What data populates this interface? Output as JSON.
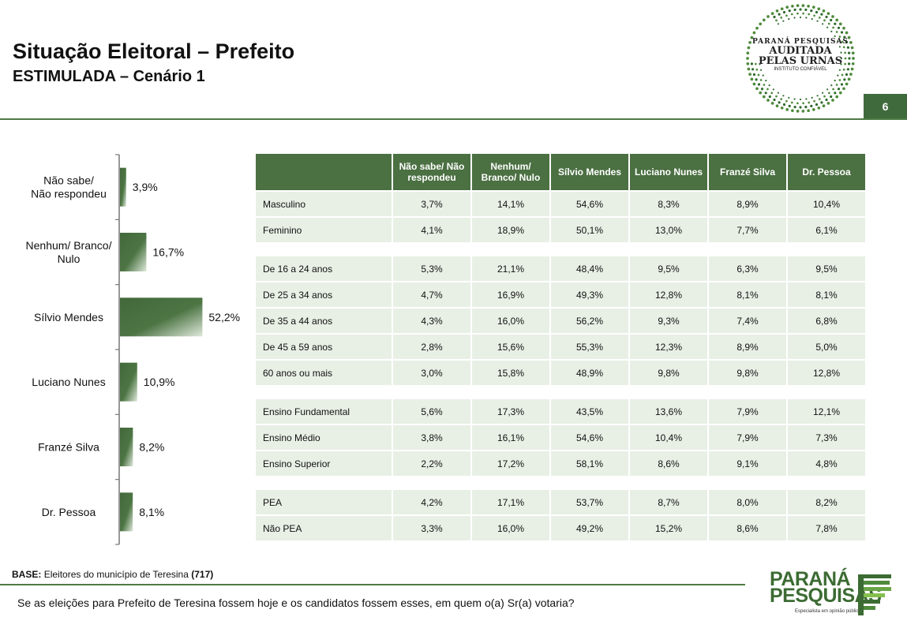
{
  "header": {
    "title": "Situação Eleitoral – Prefeito",
    "subtitle": "ESTIMULADA – Cenário 1",
    "page_number": "6"
  },
  "seal": {
    "line1": "PARANÁ PESQUISAS",
    "line2": "AUDITADA",
    "line3": "PELAS URNAS",
    "line4": "INSTITUTO CONFIÁVEL"
  },
  "chart_data": {
    "type": "bar",
    "orientation": "horizontal",
    "categories": [
      "Não sabe/ Não respondeu",
      "Nenhum/ Branco/ Nulo",
      "Sílvio Mendes",
      "Luciano Nunes",
      "Franzé Silva",
      "Dr. Pessoa"
    ],
    "category_lines": [
      [
        "Não sabe/",
        "Não respondeu"
      ],
      [
        "Nenhum/ Branco/",
        "Nulo"
      ],
      [
        "Sílvio Mendes"
      ],
      [
        "Luciano Nunes"
      ],
      [
        "Franzé Silva"
      ],
      [
        "Dr. Pessoa"
      ]
    ],
    "values": [
      3.9,
      16.7,
      52.2,
      10.9,
      8.2,
      8.1
    ],
    "value_labels": [
      "3,9%",
      "16,7%",
      "52,2%",
      "10,9%",
      "8,2%",
      "8,1%"
    ],
    "title": "",
    "xlabel": "",
    "ylabel": "",
    "xlim": [
      0,
      100
    ],
    "bar_color": "#4a7040"
  },
  "table": {
    "columns": [
      "",
      "Não sabe/ Não respondeu",
      "Nenhum/ Branco/ Nulo",
      "Sílvio Mendes",
      "Luciano Nunes",
      "Franzé Silva",
      "Dr. Pessoa"
    ],
    "column_lines": [
      [
        ""
      ],
      [
        "Não sabe/ Não",
        "respondeu"
      ],
      [
        "Nenhum/",
        "Branco/ Nulo"
      ],
      [
        "Sílvio Mendes"
      ],
      [
        "Luciano Nunes"
      ],
      [
        "Franzé Silva"
      ],
      [
        "Dr. Pessoa"
      ]
    ],
    "groups": [
      [
        [
          "Masculino",
          "3,7%",
          "14,1%",
          "54,6%",
          "8,3%",
          "8,9%",
          "10,4%"
        ],
        [
          "Feminino",
          "4,1%",
          "18,9%",
          "50,1%",
          "13,0%",
          "7,7%",
          "6,1%"
        ]
      ],
      [
        [
          "De 16 a 24 anos",
          "5,3%",
          "21,1%",
          "48,4%",
          "9,5%",
          "6,3%",
          "9,5%"
        ],
        [
          "De 25 a 34 anos",
          "4,7%",
          "16,9%",
          "49,3%",
          "12,8%",
          "8,1%",
          "8,1%"
        ],
        [
          "De 35 a 44 anos",
          "4,3%",
          "16,0%",
          "56,2%",
          "9,3%",
          "7,4%",
          "6,8%"
        ],
        [
          "De 45 a 59 anos",
          "2,8%",
          "15,6%",
          "55,3%",
          "12,3%",
          "8,9%",
          "5,0%"
        ],
        [
          "60 anos ou mais",
          "3,0%",
          "15,8%",
          "48,9%",
          "9,8%",
          "9,8%",
          "12,8%"
        ]
      ],
      [
        [
          "Ensino Fundamental",
          "5,6%",
          "17,3%",
          "43,5%",
          "13,6%",
          "7,9%",
          "12,1%"
        ],
        [
          "Ensino Médio",
          "3,8%",
          "16,1%",
          "54,6%",
          "10,4%",
          "7,9%",
          "7,3%"
        ],
        [
          "Ensino Superior",
          "2,2%",
          "17,2%",
          "58,1%",
          "8,6%",
          "9,1%",
          "4,8%"
        ]
      ],
      [
        [
          "PEA",
          "4,2%",
          "17,1%",
          "53,7%",
          "8,7%",
          "8,0%",
          "8,2%"
        ],
        [
          "Não PEA",
          "3,3%",
          "16,0%",
          "49,2%",
          "15,2%",
          "8,6%",
          "7,8%"
        ]
      ]
    ]
  },
  "footer": {
    "base_label": "BASE:",
    "base_text": "Eleitores do município de Teresina",
    "base_count": "(717)",
    "question": "Se as eleições para Prefeito de Teresina fossem hoje e os candidatos fossem esses, em quem o(a) Sr(a) votaria?",
    "logo_line1": "PARANÁ",
    "logo_line2": "PESQUISAS",
    "logo_tagline": "Especialista em opinião pública."
  }
}
